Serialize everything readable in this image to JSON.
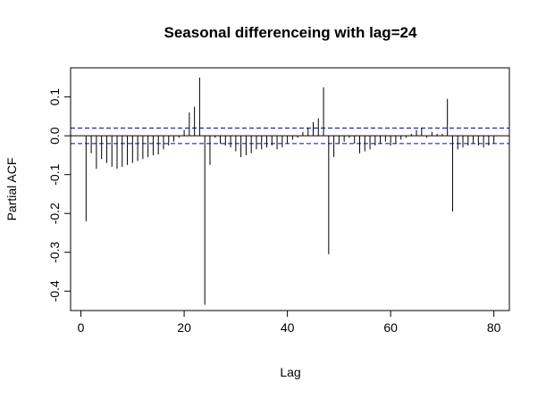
{
  "chart_data": {
    "type": "bar",
    "title": "Seasonal differenceing with lag=24",
    "xlabel": "Lag",
    "ylabel": "Partial ACF",
    "xlim": [
      -2,
      83
    ],
    "ylim": [
      -0.45,
      0.175
    ],
    "xticks": [
      0,
      20,
      40,
      60,
      80
    ],
    "yticks": [
      -0.4,
      -0.3,
      -0.2,
      -0.1,
      0.0,
      0.1
    ],
    "ci": 0.02,
    "grid": false,
    "lags": [
      1,
      2,
      3,
      4,
      5,
      6,
      7,
      8,
      9,
      10,
      11,
      12,
      13,
      14,
      15,
      16,
      17,
      18,
      19,
      20,
      21,
      22,
      23,
      24,
      25,
      26,
      27,
      28,
      29,
      30,
      31,
      32,
      33,
      34,
      35,
      36,
      37,
      38,
      39,
      40,
      41,
      42,
      43,
      44,
      45,
      46,
      47,
      48,
      49,
      50,
      51,
      52,
      53,
      54,
      55,
      56,
      57,
      58,
      59,
      60,
      61,
      62,
      63,
      64,
      65,
      66,
      67,
      68,
      69,
      70,
      71,
      72,
      73,
      74,
      75,
      76,
      77,
      78,
      79,
      80
    ],
    "values": [
      -0.22,
      -0.045,
      -0.085,
      -0.06,
      -0.07,
      -0.08,
      -0.085,
      -0.08,
      -0.075,
      -0.07,
      -0.065,
      -0.06,
      -0.055,
      -0.05,
      -0.048,
      -0.035,
      -0.025,
      -0.015,
      -0.005,
      0.015,
      0.06,
      0.075,
      0.15,
      -0.435,
      -0.075,
      -0.005,
      -0.02,
      -0.025,
      -0.03,
      -0.04,
      -0.055,
      -0.05,
      -0.045,
      -0.035,
      -0.035,
      -0.03,
      -0.025,
      -0.035,
      -0.03,
      -0.02,
      -0.01,
      -0.005,
      0.01,
      0.02,
      0.035,
      0.045,
      0.125,
      -0.305,
      -0.055,
      -0.02,
      -0.015,
      -0.005,
      -0.02,
      -0.045,
      -0.04,
      -0.035,
      -0.025,
      -0.02,
      -0.015,
      -0.025,
      -0.02,
      -0.01,
      -0.005,
      0.005,
      0.015,
      0.02,
      -0.005,
      0.01,
      0.005,
      0.005,
      0.095,
      -0.195,
      -0.035,
      -0.03,
      -0.025,
      -0.02,
      -0.025,
      -0.03,
      -0.025,
      -0.02
    ]
  }
}
